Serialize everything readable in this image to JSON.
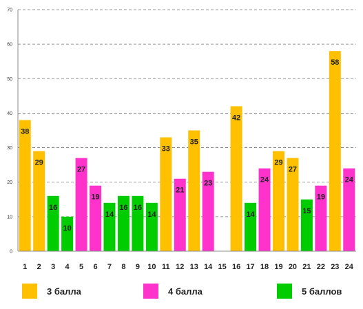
{
  "chart_data": {
    "type": "bar",
    "categories": [
      "1",
      "2",
      "3",
      "4",
      "5",
      "6",
      "7",
      "8",
      "9",
      "10",
      "11",
      "12",
      "13",
      "14",
      "15",
      "16",
      "17",
      "18",
      "19",
      "20",
      "21",
      "22",
      "23",
      "24"
    ],
    "values": [
      38,
      29,
      16,
      10,
      27,
      19,
      14,
      16,
      16,
      14,
      33,
      21,
      35,
      23,
      null,
      42,
      14,
      24,
      29,
      27,
      15,
      19,
      58,
      24
    ],
    "groups": [
      "3 балла",
      "3 балла",
      "5 баллов",
      "5 баллов",
      "4 балла",
      "4 балла",
      "5 баллов",
      "5 баллов",
      "5 баллов",
      "5 баллов",
      "3 балла",
      "4 балла",
      "3 балла",
      "4 балла",
      null,
      "3 балла",
      "5 баллов",
      "4 балла",
      "3 балла",
      "3 балла",
      "5 баллов",
      "4 балла",
      "3 балла",
      "4 балла"
    ],
    "series": [
      {
        "name": "3 балла",
        "color": "#FFC000"
      },
      {
        "name": "4 балла",
        "color": "#FF33CC"
      },
      {
        "name": "5 баллов",
        "color": "#00CC00"
      }
    ],
    "ylim": [
      0,
      70
    ],
    "yticks": [
      0,
      10,
      20,
      30,
      40,
      50,
      60,
      70
    ],
    "grid": true,
    "legend": "bottom",
    "title": "",
    "xlabel": "",
    "ylabel": ""
  }
}
